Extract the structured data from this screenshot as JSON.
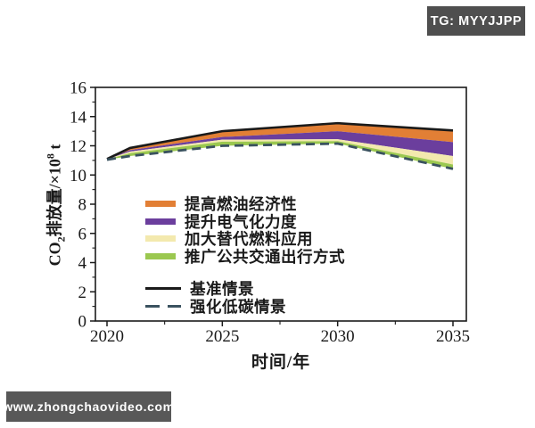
{
  "watermarks": {
    "top_right": "TG: MYYJJPP",
    "bottom_left": "www.zhongchaovideo.com",
    "top_badge_color": "#4F4F4F",
    "bottom_badge_color": "#585858"
  },
  "legend": {
    "items": [
      {
        "label": "提高燃油经济性",
        "color": "#E27F35",
        "swatch": "band"
      },
      {
        "label": "提升电气化力度",
        "color": "#6B3E9D",
        "swatch": "band"
      },
      {
        "label": "加大替代燃料应用",
        "color": "#F3E9AE",
        "swatch": "band"
      },
      {
        "label": "推广公共交通出行方式",
        "color": "#9BC850",
        "swatch": "band"
      },
      {
        "label": "基准情景",
        "color": "#1A1A1A",
        "swatch": "solid-line"
      },
      {
        "label": "强化低碳情景",
        "color": "#3A525F",
        "swatch": "dashed-line"
      }
    ]
  },
  "chart_data": {
    "type": "area",
    "xlabel": "时间/年",
    "ylabel": "CO₂排放量/×10⁸ t",
    "y_axis_title": {
      "p1": "CO",
      "sub": "2",
      "p2": "排放量/×10",
      "sup": "8",
      "p3": " t"
    },
    "xlim": [
      2020,
      2035
    ],
    "ylim": [
      0,
      16
    ],
    "x_ticks": [
      2020,
      2025,
      2030,
      2035
    ],
    "x_minor_ticks": [
      2022.5,
      2027.5,
      2032.5
    ],
    "y_ticks": [
      0,
      2,
      4,
      6,
      8,
      10,
      12,
      14,
      16
    ],
    "y_minor_ticks": [
      1,
      3,
      5,
      7,
      9,
      11,
      13,
      15
    ],
    "x": [
      2020,
      2021,
      2025,
      2030,
      2035
    ],
    "lines": [
      {
        "id": "baseline",
        "name": "基准情景",
        "style": "solid",
        "color": "#1A1A1A",
        "values": [
          11.1,
          11.85,
          13.0,
          13.55,
          13.05
        ]
      },
      {
        "id": "low-carbon",
        "name": "强化低碳情景",
        "style": "dashed",
        "color": "#3A525F",
        "values": [
          11.05,
          11.3,
          12.0,
          12.15,
          10.42
        ]
      }
    ],
    "bands": [
      {
        "id": "fuel-economy",
        "name": "提高燃油经济性",
        "color": "#E27F35",
        "upper": [
          11.1,
          11.85,
          13.0,
          13.55,
          13.05
        ],
        "lower": [
          11.09,
          11.7,
          12.6,
          13.0,
          12.25
        ]
      },
      {
        "id": "electrification",
        "name": "提升电气化力度",
        "color": "#6B3E9D",
        "upper": [
          11.09,
          11.7,
          12.6,
          13.0,
          12.25
        ],
        "lower": [
          11.08,
          11.6,
          12.42,
          12.45,
          11.3
        ]
      },
      {
        "id": "alternative-fuels",
        "name": "加大替代燃料应用",
        "color": "#F3E9AE",
        "upper": [
          11.08,
          11.6,
          12.42,
          12.45,
          11.3
        ],
        "lower": [
          11.07,
          11.5,
          12.28,
          12.32,
          10.72
        ]
      },
      {
        "id": "public-transit",
        "name": "推广公共交通出行方式",
        "color": "#9BC850",
        "upper": [
          11.07,
          11.5,
          12.28,
          12.32,
          10.72
        ],
        "lower": [
          11.05,
          11.3,
          12.0,
          12.15,
          10.42
        ]
      }
    ]
  }
}
